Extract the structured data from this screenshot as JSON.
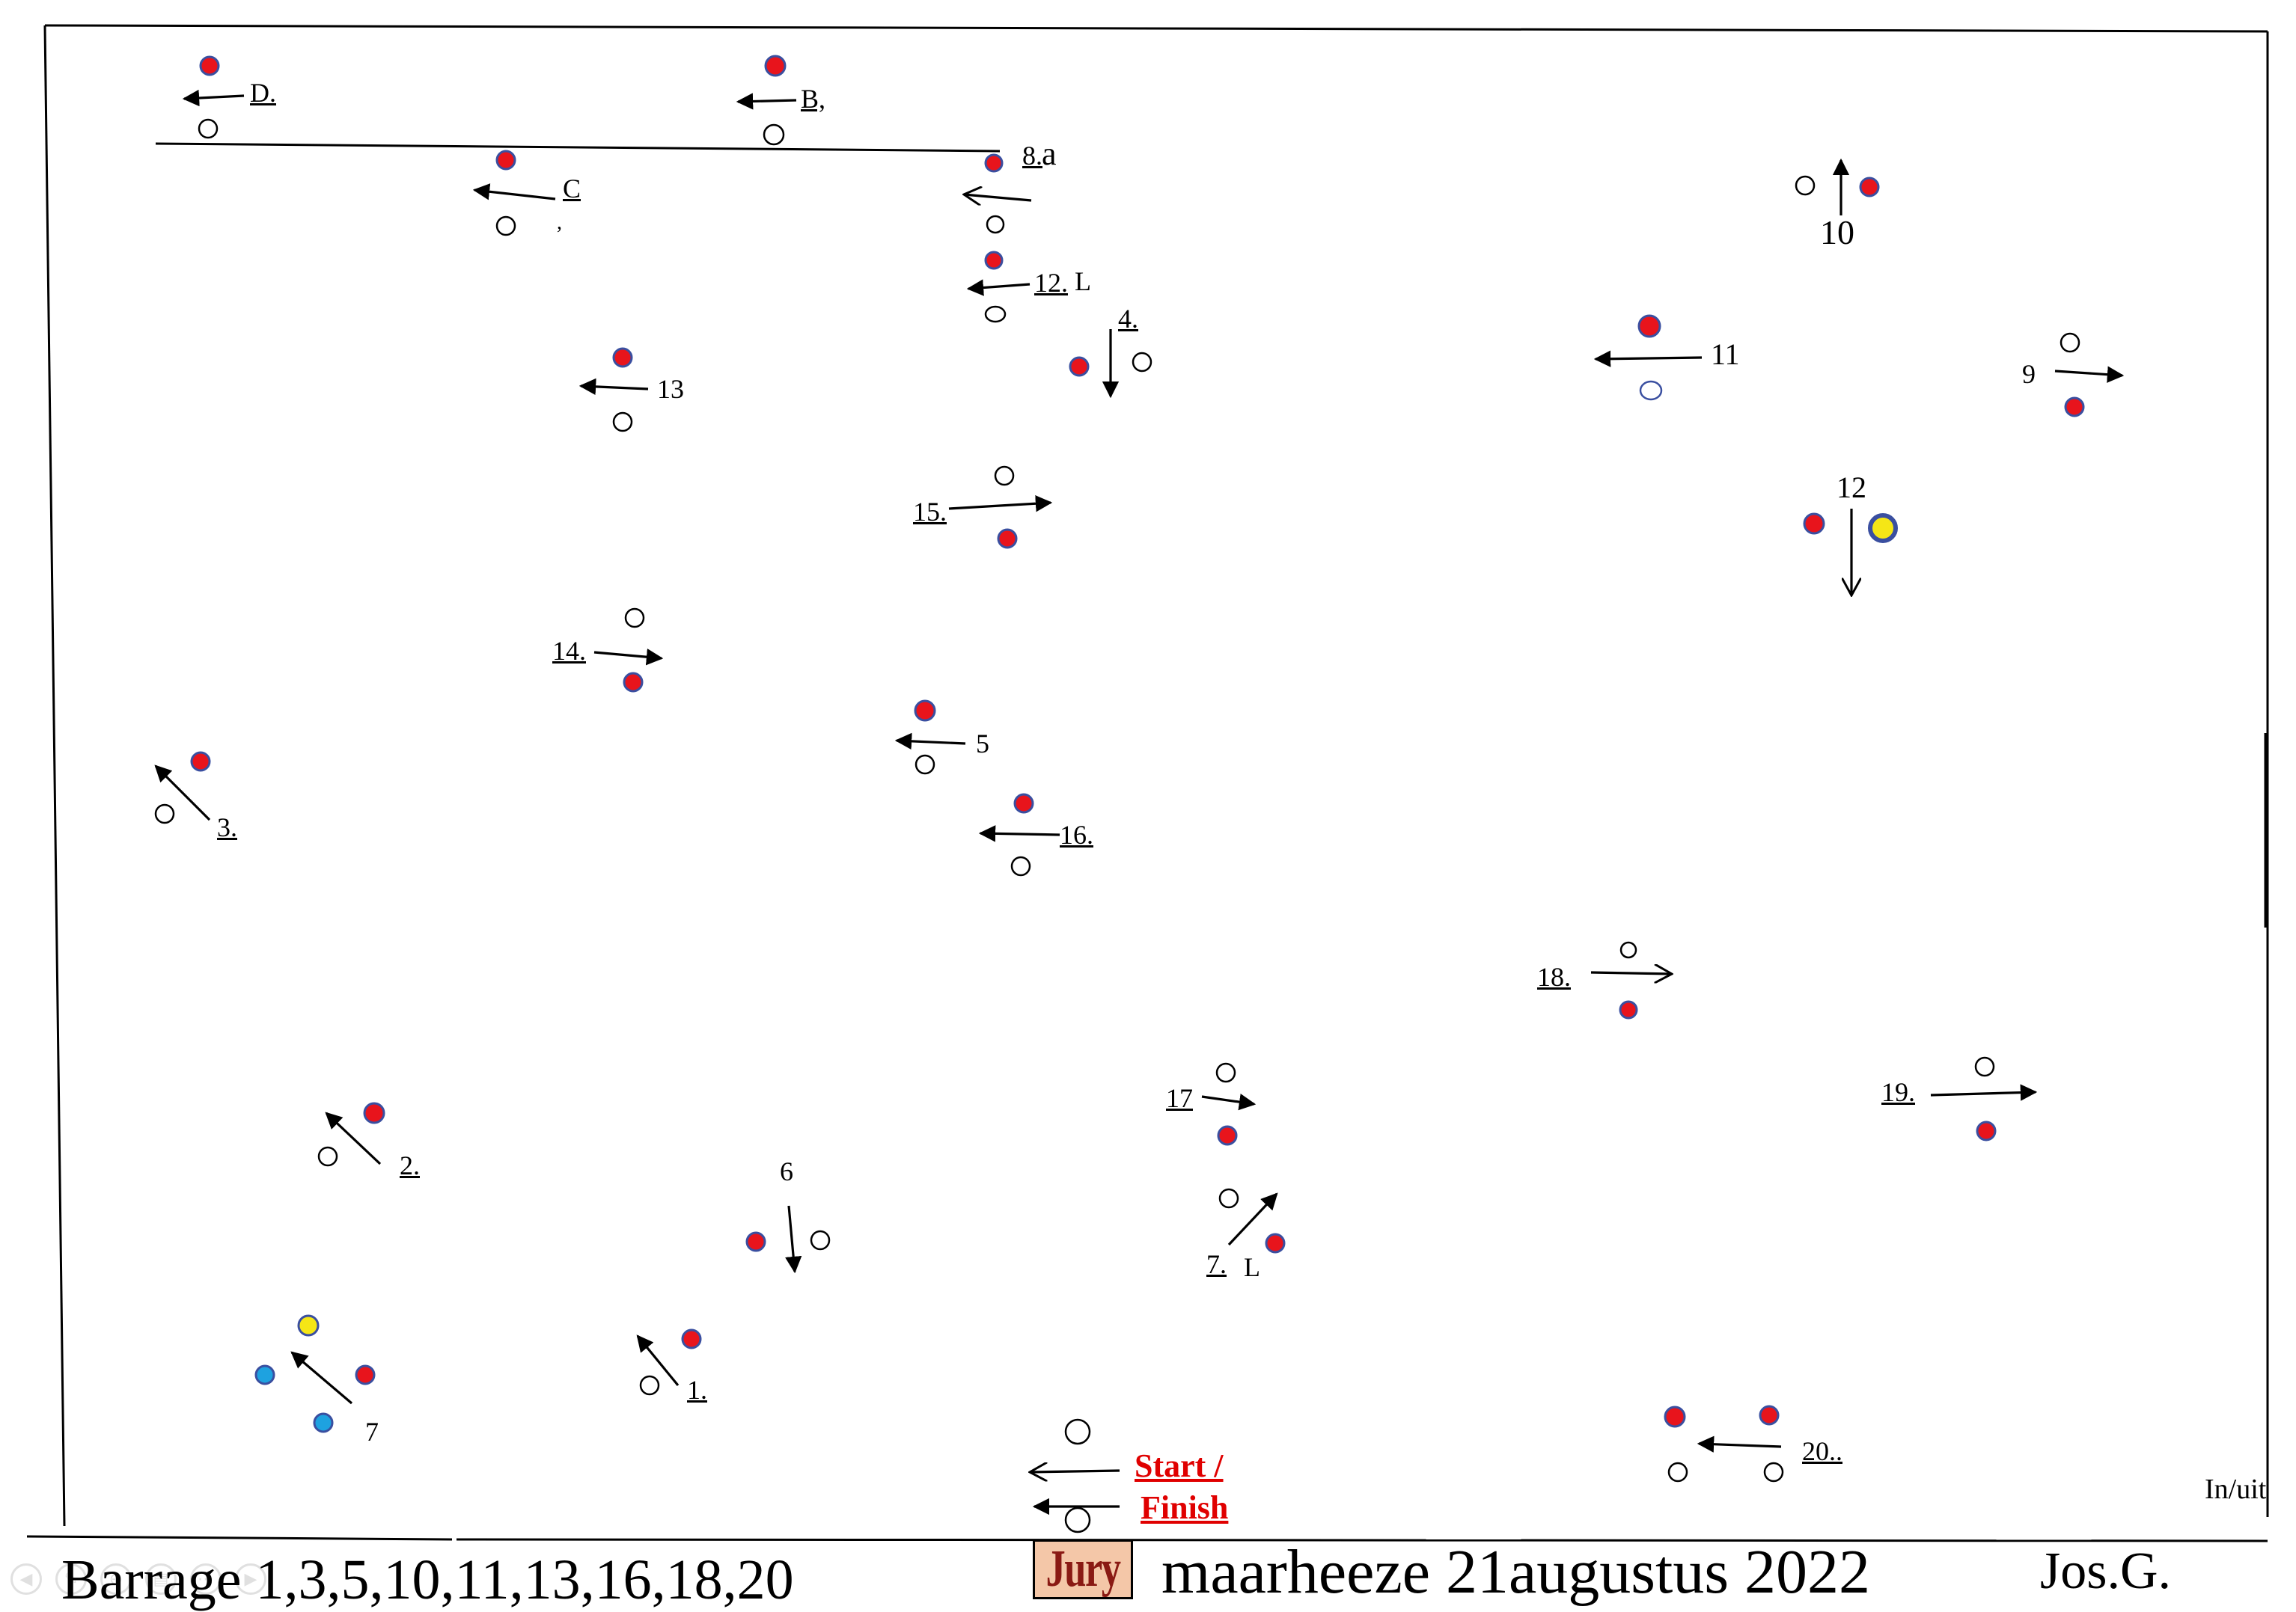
{
  "colors": {
    "pole_red": "#e8141c",
    "pole_outline": "#3a4fa0",
    "pole_yellow": "#f5e616",
    "pole_blue": "#1ea2e0",
    "jury_bg": "#f4c7a8",
    "jury_text": "#8a1a14",
    "start_finish": "#e00000"
  },
  "obstacles": {
    "ob_D": "D.",
    "ob_B": "B,",
    "ob_8a_num": "8.",
    "ob_8a_letter": "a",
    "ob_C": "C",
    "ob_C_mark": ",",
    "ob_12L": "12.",
    "ob_12L_letter": "L",
    "ob_4": "4.",
    "ob_13": "13",
    "ob_10": "10",
    "ob_11": "11",
    "ob_9": "9",
    "ob_12": "12",
    "ob_15": "15.",
    "ob_14": "14.",
    "ob_5": "5",
    "ob_16": "16.",
    "ob_3": "3.",
    "ob_18": "18.",
    "ob_17": "17",
    "ob_19": "19.",
    "ob_2": "2.",
    "ob_6": "6",
    "ob_7L": "7.",
    "ob_7L_letter": "L",
    "ob_1": "1.",
    "ob_7": "7",
    "ob_20": "20.."
  },
  "start_finish": {
    "start": "Start  /",
    "finish": "Finish"
  },
  "in_uit": "In/uit",
  "footer": {
    "barrage": "Barrage 1,3,5,10,11,13,16,18,20",
    "jury": "Jury",
    "event": "maarheeze 21augustus 2022",
    "author": "Jos.G."
  }
}
